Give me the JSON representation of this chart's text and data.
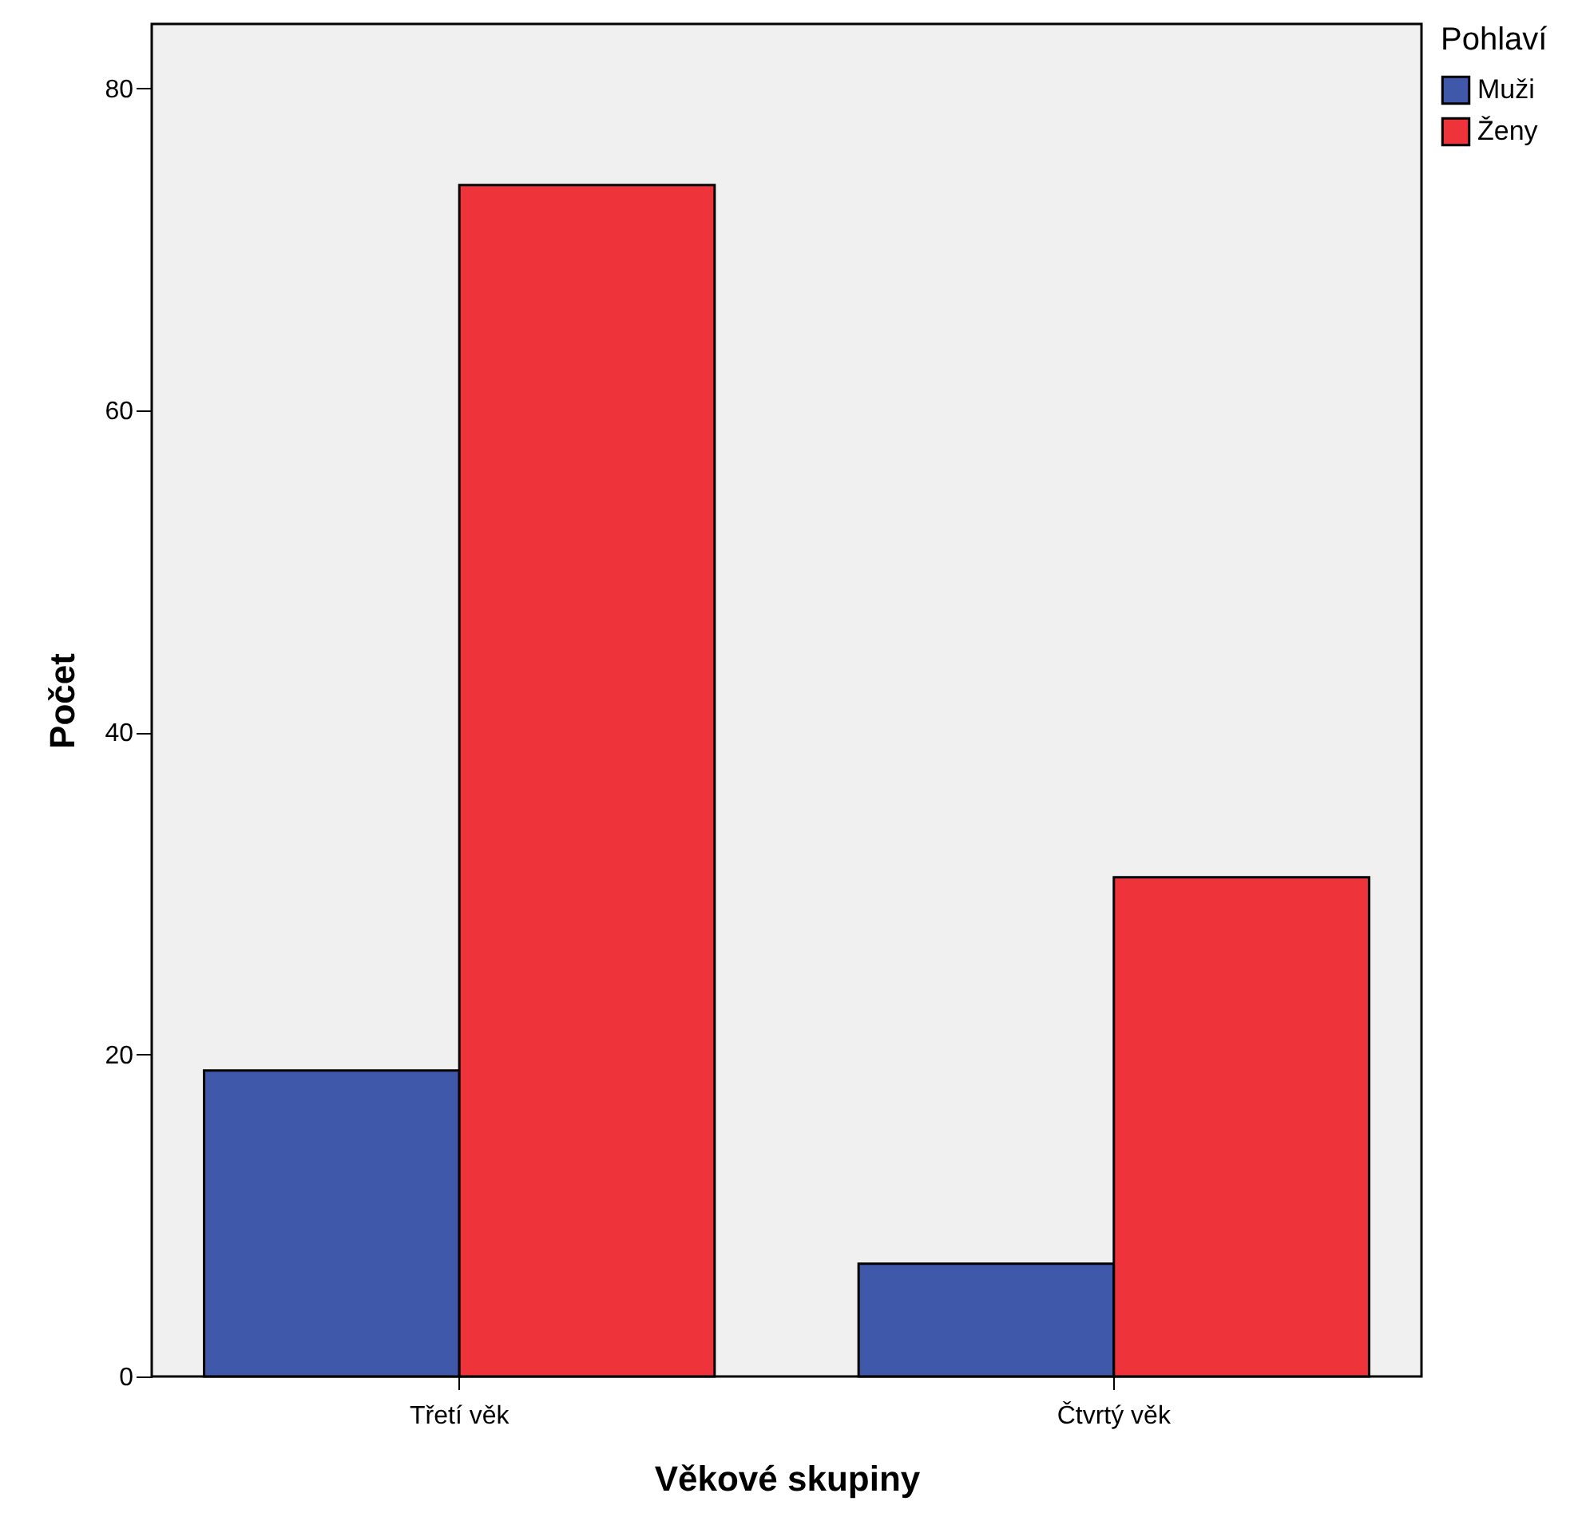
{
  "chart_data": {
    "type": "bar",
    "xlabel": "Věkové skupiny",
    "ylabel": "Počet",
    "legend_title": "Pohlaví",
    "categories": [
      "Třetí věk",
      "Čtvrtý věk"
    ],
    "series": [
      {
        "name": "Muži",
        "color": "#3f58a9",
        "values": [
          19,
          7
        ]
      },
      {
        "name": "Ženy",
        "color": "#ef333a",
        "values": [
          74,
          31
        ]
      }
    ],
    "ylim": [
      0,
      84
    ],
    "yticks": [
      0,
      20,
      40,
      60,
      80
    ],
    "grid": false,
    "legend": "top right"
  }
}
